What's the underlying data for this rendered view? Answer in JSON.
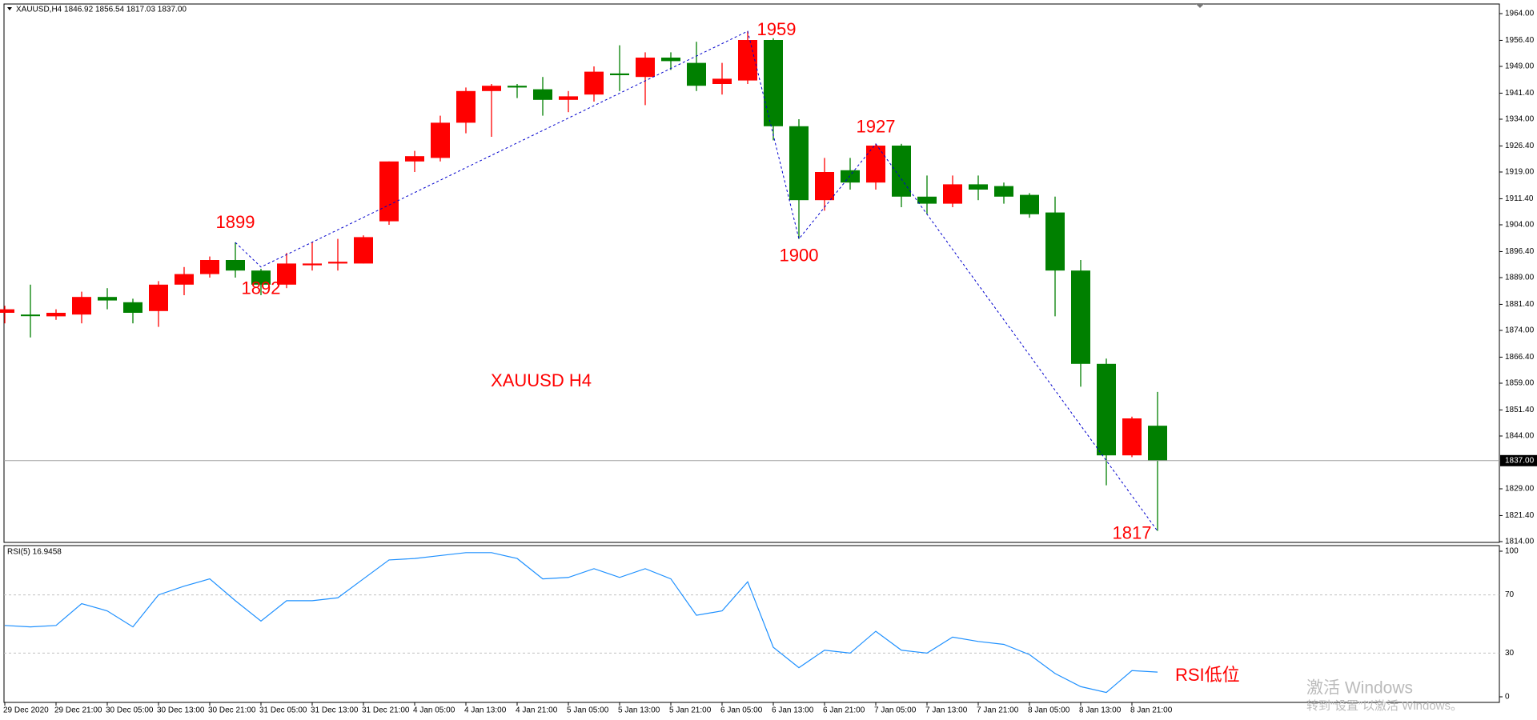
{
  "chart_data": [
    {
      "type": "candlestick",
      "title": "XAUUSD,H4  1846.92 1856.54 1817.03 1837.00",
      "annotation": "XAUUSD  H4",
      "open": [
        1879,
        1878.5,
        1878,
        1878.5,
        1883.5,
        1882,
        1879.5,
        1887,
        1890,
        1894,
        1891,
        1887,
        1892.5,
        1893,
        1893,
        1905,
        1922,
        1923,
        1933,
        1942,
        1943.5,
        1942.5,
        1939.5,
        1941,
        1947,
        1946,
        1951.5,
        1950,
        1944,
        1945,
        1956.5,
        1932,
        1911,
        1919.5,
        1916,
        1926.5,
        1912,
        1910,
        1915.5,
        1915,
        1912.5,
        1907.5,
        1891,
        1864.5,
        1838.5,
        1846.92
      ],
      "high": [
        1881,
        1887,
        1880,
        1885,
        1886,
        1883,
        1888,
        1892,
        1895,
        1899,
        1891.5,
        1896,
        1899,
        1900,
        1901,
        1922,
        1925,
        1935,
        1943,
        1944,
        1944,
        1946,
        1942,
        1949,
        1955,
        1953,
        1953,
        1956,
        1950,
        1959,
        1957,
        1934,
        1923,
        1923,
        1927,
        1927,
        1918,
        1918,
        1918,
        1916,
        1913,
        1912,
        1894,
        1866,
        1849.5,
        1856.54
      ],
      "low": [
        1876,
        1872,
        1877,
        1876,
        1880,
        1876,
        1875,
        1884,
        1889,
        1889,
        1884,
        1886,
        1891,
        1891,
        1893,
        1904,
        1919,
        1922,
        1930,
        1929,
        1940,
        1935,
        1936,
        1939,
        1942,
        1938,
        1948,
        1942,
        1941,
        1944,
        1928,
        1900,
        1908,
        1914,
        1914,
        1909,
        1907,
        1909,
        1911,
        1910,
        1906,
        1878,
        1858,
        1830,
        1838,
        1817.03
      ],
      "close": [
        1880,
        1878.5,
        1879,
        1883.5,
        1882.5,
        1879,
        1887,
        1890,
        1894,
        1891,
        1887,
        1893,
        1893,
        1893.5,
        1900.5,
        1922,
        1923.5,
        1933,
        1942,
        1943.5,
        1943,
        1939.5,
        1940.5,
        1947.5,
        1946.5,
        1951.5,
        1950.5,
        1943.5,
        1945.5,
        1956.5,
        1932,
        1911,
        1919,
        1916,
        1926.5,
        1912,
        1910,
        1915.5,
        1914,
        1912,
        1907,
        1891,
        1864.5,
        1838.5,
        1849,
        1837
      ],
      "up_color": "#ff0000",
      "down_color": "#008000",
      "pivots": [
        1899,
        1892,
        1959,
        1900,
        1927,
        1817
      ],
      "zigzag_color": "#0000cd",
      "last_price": {
        "value": 1837,
        "label": "1837.00"
      },
      "ylim": [
        1814,
        1964
      ],
      "yticks": [
        {
          "value": 1964,
          "label": "1964.00"
        },
        {
          "value": 1956.4,
          "label": "1956.40"
        },
        {
          "value": 1949,
          "label": "1949.00"
        },
        {
          "value": 1941.4,
          "label": "1941.40"
        },
        {
          "value": 1934,
          "label": "1934.00"
        },
        {
          "value": 1926.4,
          "label": "1926.40"
        },
        {
          "value": 1919,
          "label": "1919.00"
        },
        {
          "value": 1911.4,
          "label": "1911.40"
        },
        {
          "value": 1904,
          "label": "1904.00"
        },
        {
          "value": 1896.4,
          "label": "1896.40"
        },
        {
          "value": 1889,
          "label": "1889.00"
        },
        {
          "value": 1881.4,
          "label": "1881.40"
        },
        {
          "value": 1874,
          "label": "1874.00"
        },
        {
          "value": 1866.4,
          "label": "1866.40"
        },
        {
          "value": 1859,
          "label": "1859.00"
        },
        {
          "value": 1851.4,
          "label": "1851.40"
        },
        {
          "value": 1844,
          "label": "1844.00"
        },
        {
          "value": 1829,
          "label": "1829.00"
        },
        {
          "value": 1821.4,
          "label": "1821.40"
        },
        {
          "value": 1814,
          "label": "1814.00"
        }
      ]
    },
    {
      "type": "line",
      "title": "RSI(5) 16.9458",
      "annotation": "RSI低位",
      "categories": [
        "29 Dec 2020",
        null,
        "29 Dec 21:00",
        null,
        "30 Dec 05:00",
        null,
        "30 Dec 13:00",
        null,
        "30 Dec 21:00",
        null,
        "31 Dec 05:00",
        null,
        "31 Dec 13:00",
        null,
        "31 Dec 21:00",
        null,
        "4 Jan 05:00",
        null,
        "4 Jan 13:00",
        null,
        "4 Jan 21:00",
        null,
        "5 Jan 05:00",
        null,
        "5 Jan 13:00",
        null,
        "5 Jan 21:00",
        null,
        "6 Jan 05:00",
        null,
        "6 Jan 13:00",
        null,
        "6 Jan 21:00",
        null,
        "7 Jan 05:00",
        null,
        "7 Jan 13:00",
        null,
        "7 Jan 21:00",
        null,
        "8 Jan 05:00",
        null,
        "8 Jan 13:00",
        null,
        "8 Jan 21:00",
        null
      ],
      "series": [
        {
          "name": "RSI(5)",
          "color": "#1e90ff",
          "values": [
            49,
            48,
            49,
            64,
            59,
            48,
            70,
            76,
            81,
            66,
            52,
            66,
            66,
            68,
            81,
            94,
            95,
            97,
            99,
            99,
            95,
            81,
            82,
            88,
            82,
            88,
            81,
            56,
            59,
            79,
            34,
            20,
            32,
            30,
            45,
            32,
            30,
            41,
            38,
            36,
            29,
            16,
            7,
            3,
            18,
            16.9458
          ]
        }
      ],
      "ylim": [
        0,
        100
      ],
      "yticks": [
        100,
        70,
        30,
        0
      ],
      "grid": true
    }
  ],
  "watermark": [
    "激活 Windows",
    "转到“设置”以激活 Windows。"
  ]
}
